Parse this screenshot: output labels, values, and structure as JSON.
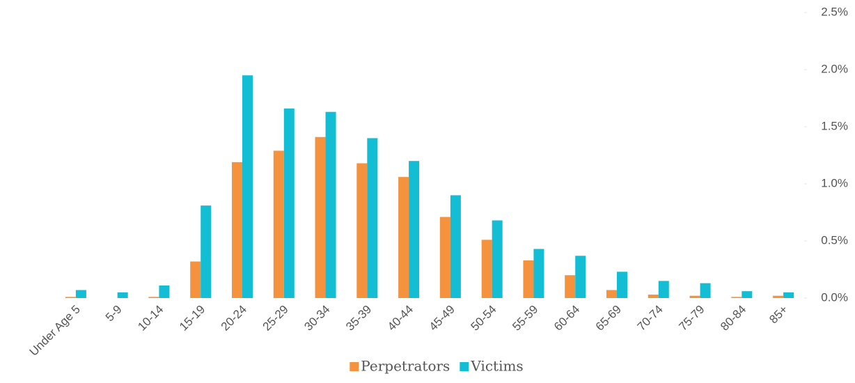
{
  "chart_data": {
    "type": "bar",
    "categories": [
      "Under Age 5",
      "5-9",
      "10-14",
      "15-19",
      "20-24",
      "25-29",
      "30-34",
      "35-39",
      "40-44",
      "45-49",
      "50-54",
      "55-59",
      "60-64",
      "65-69",
      "70-74",
      "75-79",
      "80-84",
      "85+"
    ],
    "series": [
      {
        "name": "Perpetrators",
        "color": "#f5923e",
        "values": [
          0.01,
          0,
          0.01,
          0.32,
          1.19,
          1.29,
          1.41,
          1.18,
          1.06,
          0.71,
          0.51,
          0.33,
          0.2,
          0.07,
          0.03,
          0.02,
          0.01,
          0.02
        ]
      },
      {
        "name": "Victims",
        "color": "#13bdd3",
        "values": [
          0.07,
          0.05,
          0.11,
          0.81,
          1.95,
          1.66,
          1.63,
          1.4,
          1.2,
          0.9,
          0.68,
          0.43,
          0.37,
          0.23,
          0.15,
          0.13,
          0.06,
          0.05
        ]
      }
    ],
    "ylim": [
      0,
      2.5
    ],
    "yticks": [
      {
        "value": 0,
        "label": "0.0%"
      },
      {
        "value": 0.5,
        "label": "0.5%"
      },
      {
        "value": 1,
        "label": "1.0%"
      },
      {
        "value": 1.5,
        "label": "1.5%"
      },
      {
        "value": 2,
        "label": "2.0%"
      },
      {
        "value": 2.5,
        "label": "2.5%"
      }
    ],
    "y_axis_side": "right",
    "legend": "bottom"
  }
}
